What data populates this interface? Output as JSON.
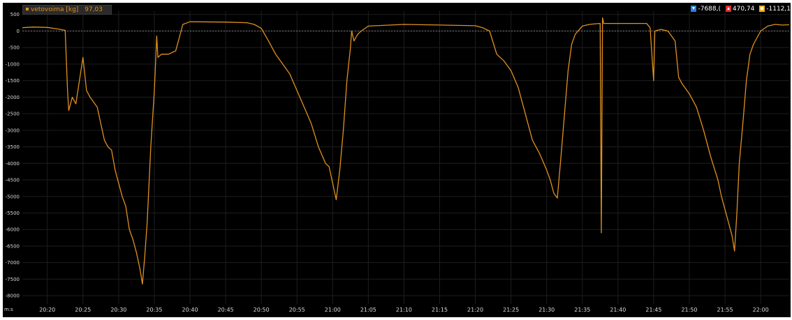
{
  "legend": {
    "name": "vetovoima [kg]",
    "value": "97,03"
  },
  "stats": {
    "min": "-7688,(",
    "max": "470,74",
    "avg": "-1112,1"
  },
  "x_unit": "m:s",
  "colors": {
    "series": "#e09020",
    "background": "#000000",
    "grid": "#1e1e1e",
    "zero_line": "#9a9a9a"
  },
  "icons": {
    "min": "min-triangle-icon",
    "max": "max-triangle-icon",
    "avg": "avg-square-icon"
  },
  "chart_data": {
    "type": "line",
    "ylim": [
      -8250,
      600
    ],
    "xlim": [
      "20:16:30",
      "22:04:00"
    ],
    "yticks": [
      500,
      0,
      -500,
      -1000,
      -1500,
      -2000,
      -2500,
      -3000,
      -3500,
      -4000,
      -4500,
      -5000,
      -5500,
      -6000,
      -6500,
      -7000,
      -7500,
      -8000
    ],
    "xticks": [
      "20:20",
      "20:25",
      "20:30",
      "20:35",
      "20:40",
      "20:45",
      "20:50",
      "20:55",
      "21:00",
      "21:05",
      "21:10",
      "21:15",
      "21:20",
      "21:25",
      "21:30",
      "21:35",
      "21:40",
      "21:45",
      "21:50",
      "21:55",
      "22:00"
    ],
    "grid": true,
    "series": [
      {
        "name": "vetovoima [kg]",
        "points": [
          [
            "20:16:30",
            100
          ],
          [
            "20:18:00",
            120
          ],
          [
            "20:20:00",
            110
          ],
          [
            "20:21:30",
            60
          ],
          [
            "20:22:30",
            20
          ],
          [
            "20:22:50",
            -1800
          ],
          [
            "20:23:00",
            -2400
          ],
          [
            "20:23:30",
            -2000
          ],
          [
            "20:24:00",
            -2200
          ],
          [
            "20:24:30",
            -1500
          ],
          [
            "20:25:00",
            -800
          ],
          [
            "20:25:30",
            -1800
          ],
          [
            "20:26:00",
            -2000
          ],
          [
            "20:27:00",
            -2300
          ],
          [
            "20:28:00",
            -3300
          ],
          [
            "20:28:30",
            -3500
          ],
          [
            "20:29:00",
            -3600
          ],
          [
            "20:29:30",
            -4200
          ],
          [
            "20:30:00",
            -4600
          ],
          [
            "20:30:30",
            -5000
          ],
          [
            "20:31:00",
            -5300
          ],
          [
            "20:31:30",
            -6000
          ],
          [
            "20:32:00",
            -6300
          ],
          [
            "20:32:30",
            -6700
          ],
          [
            "20:33:00",
            -7200
          ],
          [
            "20:33:20",
            -7650
          ],
          [
            "20:33:40",
            -6800
          ],
          [
            "20:34:00",
            -5800
          ],
          [
            "20:34:30",
            -3500
          ],
          [
            "20:35:00",
            -1800
          ],
          [
            "20:35:20",
            -150
          ],
          [
            "20:35:30",
            -800
          ],
          [
            "20:36:00",
            -700
          ],
          [
            "20:37:00",
            -700
          ],
          [
            "20:38:00",
            -600
          ],
          [
            "20:38:30",
            -200
          ],
          [
            "20:39:00",
            200
          ],
          [
            "20:40:00",
            280
          ],
          [
            "20:45:00",
            270
          ],
          [
            "20:48:00",
            250
          ],
          [
            "20:49:00",
            200
          ],
          [
            "20:50:00",
            80
          ],
          [
            "20:51:00",
            -300
          ],
          [
            "20:52:00",
            -700
          ],
          [
            "20:53:00",
            -1000
          ],
          [
            "20:54:00",
            -1300
          ],
          [
            "20:55:00",
            -1800
          ],
          [
            "20:56:00",
            -2300
          ],
          [
            "20:57:00",
            -2800
          ],
          [
            "20:58:00",
            -3500
          ],
          [
            "20:59:00",
            -4000
          ],
          [
            "20:59:30",
            -4100
          ],
          [
            "21:00:00",
            -4600
          ],
          [
            "21:00:30",
            -5100
          ],
          [
            "21:01:00",
            -4200
          ],
          [
            "21:01:30",
            -3000
          ],
          [
            "21:02:00",
            -1500
          ],
          [
            "21:02:30",
            -500
          ],
          [
            "21:02:40",
            0
          ],
          [
            "21:03:00",
            -300
          ],
          [
            "21:03:30",
            -100
          ],
          [
            "21:04:00",
            0
          ],
          [
            "21:05:00",
            150
          ],
          [
            "21:10:00",
            200
          ],
          [
            "21:15:00",
            180
          ],
          [
            "21:20:00",
            160
          ],
          [
            "21:21:00",
            100
          ],
          [
            "21:22:00",
            0
          ],
          [
            "21:23:00",
            -700
          ],
          [
            "21:24:00",
            -900
          ],
          [
            "21:25:00",
            -1200
          ],
          [
            "21:26:00",
            -1700
          ],
          [
            "21:27:00",
            -2500
          ],
          [
            "21:28:00",
            -3300
          ],
          [
            "21:29:00",
            -3700
          ],
          [
            "21:30:00",
            -4200
          ],
          [
            "21:30:30",
            -4500
          ],
          [
            "21:31:00",
            -4900
          ],
          [
            "21:31:30",
            -5050
          ],
          [
            "21:32:00",
            -3800
          ],
          [
            "21:32:30",
            -2500
          ],
          [
            "21:33:00",
            -1200
          ],
          [
            "21:33:30",
            -400
          ],
          [
            "21:34:00",
            -100
          ],
          [
            "21:35:00",
            150
          ],
          [
            "21:36:00",
            200
          ],
          [
            "21:37:00",
            220
          ],
          [
            "21:37:30",
            230
          ],
          [
            "21:37:40",
            -6100
          ],
          [
            "21:37:50",
            400
          ],
          [
            "21:38:00",
            230
          ],
          [
            "21:40:00",
            230
          ],
          [
            "21:42:00",
            230
          ],
          [
            "21:44:00",
            230
          ],
          [
            "21:44:30",
            100
          ],
          [
            "21:45:00",
            -1500
          ],
          [
            "21:45:10",
            0
          ],
          [
            "21:46:00",
            50
          ],
          [
            "21:47:00",
            0
          ],
          [
            "21:48:00",
            -300
          ],
          [
            "21:48:30",
            -1400
          ],
          [
            "21:49:00",
            -1600
          ],
          [
            "21:50:00",
            -1900
          ],
          [
            "21:51:00",
            -2300
          ],
          [
            "21:52:00",
            -3000
          ],
          [
            "21:53:00",
            -3800
          ],
          [
            "21:54:00",
            -4500
          ],
          [
            "21:54:30",
            -5000
          ],
          [
            "21:55:00",
            -5400
          ],
          [
            "21:55:30",
            -5800
          ],
          [
            "21:56:00",
            -6200
          ],
          [
            "21:56:20",
            -6650
          ],
          [
            "21:56:40",
            -5500
          ],
          [
            "21:57:00",
            -4000
          ],
          [
            "21:57:30",
            -2800
          ],
          [
            "21:58:00",
            -1500
          ],
          [
            "21:58:30",
            -700
          ],
          [
            "21:59:00",
            -400
          ],
          [
            "21:59:30",
            -200
          ],
          [
            "22:00:00",
            0
          ],
          [
            "22:01:00",
            150
          ],
          [
            "22:02:00",
            200
          ],
          [
            "22:03:00",
            180
          ],
          [
            "22:04:00",
            190
          ]
        ]
      }
    ]
  }
}
